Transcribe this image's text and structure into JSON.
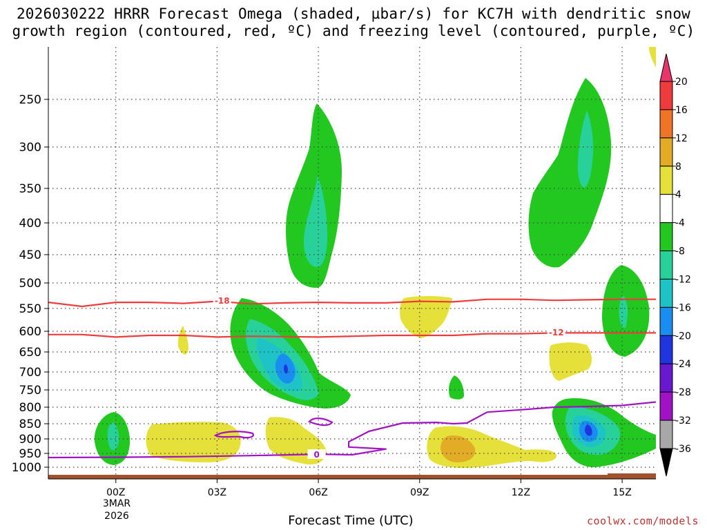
{
  "chart_data": {
    "type": "heatmap",
    "title_line1": "2026030222 HRRR Forecast Omega (shaded, µbar/s) for KC7H with dendritic snow",
    "title_line2": "growth region (contoured, red, ºC) and freezing level (contoured, purple, ºC)",
    "xlabel": "Forecast Time (UTC)",
    "credit": "coolwx.com/models",
    "x_ticks": [
      {
        "h": 0,
        "label": "00Z"
      },
      {
        "h": 3,
        "label": "03Z"
      },
      {
        "h": 6,
        "label": "06Z"
      },
      {
        "h": 9,
        "label": "09Z"
      },
      {
        "h": 12,
        "label": "12Z"
      },
      {
        "h": 15,
        "label": "15Z"
      }
    ],
    "date_label": [
      "3MAR",
      "2026"
    ],
    "x_range": [
      -2,
      16
    ],
    "y_ticks": [
      250,
      300,
      350,
      400,
      450,
      500,
      550,
      600,
      650,
      700,
      750,
      800,
      850,
      900,
      950,
      1000
    ],
    "y_range_hpa": [
      200,
      1040
    ],
    "colorbar": {
      "labels": [
        "20",
        "16",
        "12",
        "8",
        "4",
        "-4",
        "-8",
        "-12",
        "-16",
        "-20",
        "-24",
        "-28",
        "-32",
        "-36"
      ],
      "bands": [
        {
          "color": "#e8356b"
        },
        {
          "color": "#ef3b3b"
        },
        {
          "color": "#f07426"
        },
        {
          "color": "#e3ac27"
        },
        {
          "color": "#e5e13a"
        },
        {
          "color": "#ffffff"
        },
        {
          "color": "#22c71f"
        },
        {
          "color": "#28d19a"
        },
        {
          "color": "#1ec3c8"
        },
        {
          "color": "#1a8ef0"
        },
        {
          "color": "#1f35e0"
        },
        {
          "color": "#6a18d0"
        },
        {
          "color": "#a012c4"
        },
        {
          "color": "#a8a8a8"
        },
        {
          "color": "#000000"
        }
      ]
    },
    "contour_labels": [
      {
        "text": "-18",
        "h": 3.15,
        "p": 535,
        "color": "#ef3b3b"
      },
      {
        "text": "-12",
        "h": 13.05,
        "p": 603,
        "color": "#ef3b3b"
      },
      {
        "text": "0",
        "h": 5.95,
        "p": 955,
        "color": "#a012c4"
      }
    ],
    "contour_lines": [
      {
        "name": "isotherm-minus18",
        "color": "#ef3b3b",
        "pts": [
          [
            -2,
            538
          ],
          [
            -1,
            546
          ],
          [
            0,
            538
          ],
          [
            1,
            538
          ],
          [
            2,
            540
          ],
          [
            3,
            536
          ],
          [
            4,
            541
          ],
          [
            5,
            539
          ],
          [
            6,
            538
          ],
          [
            7,
            539
          ],
          [
            8,
            539
          ],
          [
            9,
            536
          ],
          [
            10,
            537
          ],
          [
            11,
            532
          ],
          [
            12,
            532
          ],
          [
            13,
            534
          ],
          [
            14,
            533
          ],
          [
            15,
            532
          ],
          [
            16,
            532
          ]
        ]
      },
      {
        "name": "isotherm-minus12",
        "color": "#ef3b3b",
        "pts": [
          [
            -2,
            608
          ],
          [
            -1,
            608
          ],
          [
            0,
            614
          ],
          [
            1,
            610
          ],
          [
            2,
            610
          ],
          [
            3,
            614
          ],
          [
            4,
            612
          ],
          [
            5,
            613
          ],
          [
            6,
            614
          ],
          [
            7,
            612
          ],
          [
            8,
            610
          ],
          [
            9,
            610
          ],
          [
            10,
            610
          ],
          [
            11,
            606
          ],
          [
            12,
            606
          ],
          [
            13,
            604
          ],
          [
            14,
            604
          ],
          [
            15,
            604
          ],
          [
            16,
            604
          ]
        ]
      },
      {
        "name": "freezing-level-0C",
        "color": "#a012c4",
        "pts": [
          [
            -2,
            965
          ],
          [
            0,
            964
          ],
          [
            2,
            962
          ],
          [
            4,
            958
          ],
          [
            6,
            953
          ],
          [
            7,
            955
          ],
          [
            8,
            935
          ],
          [
            7.5,
            932
          ],
          [
            6.9,
            928
          ],
          [
            6.9,
            910
          ],
          [
            7.5,
            875
          ],
          [
            8.5,
            848
          ],
          [
            9.5,
            846
          ],
          [
            10,
            850
          ],
          [
            10.4,
            848
          ],
          [
            11,
            815
          ],
          [
            12,
            808
          ],
          [
            13,
            800
          ],
          [
            14,
            798
          ],
          [
            15,
            795
          ],
          [
            16,
            785
          ]
        ]
      }
    ]
  }
}
